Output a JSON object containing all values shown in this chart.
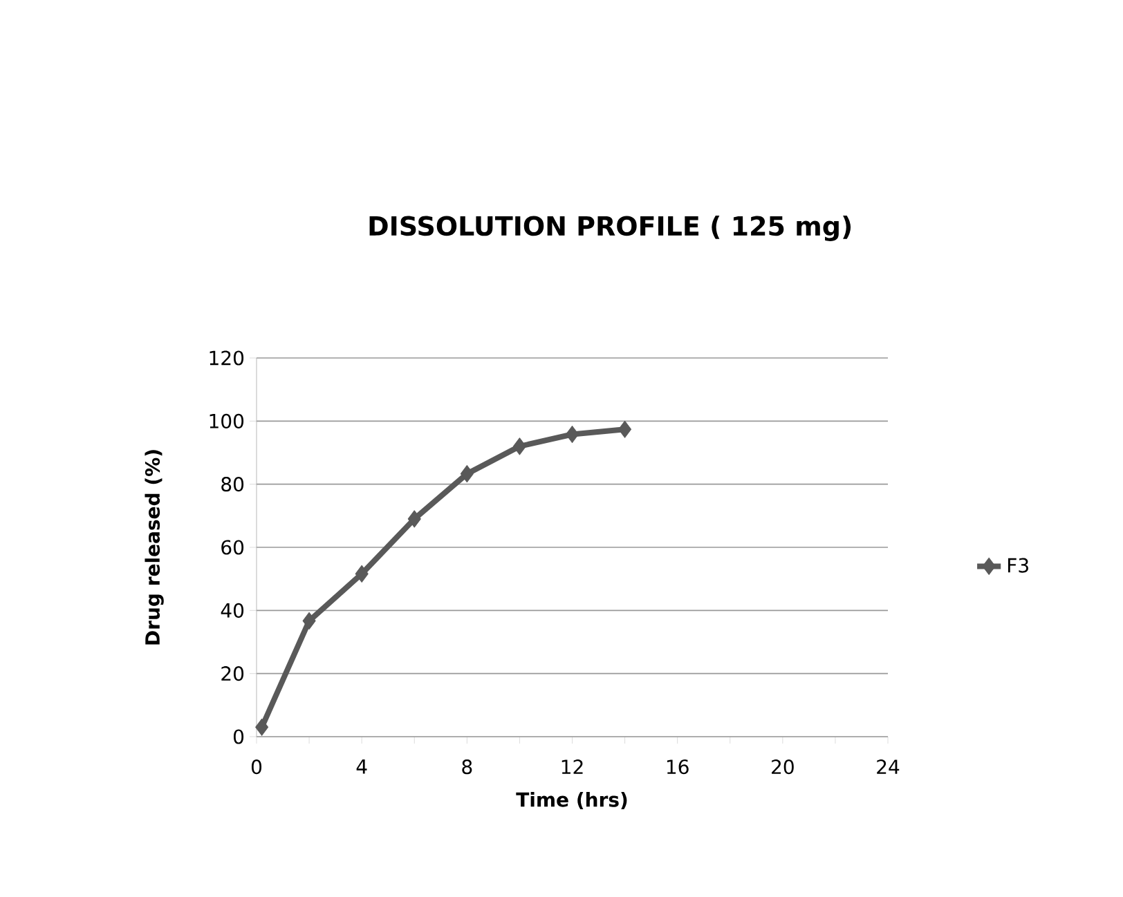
{
  "chart_data": {
    "type": "line",
    "title": "DISSOLUTION PROFILE ( 125 mg)",
    "xlabel": "Time (hrs)",
    "ylabel": "Drug released (%)",
    "x": [
      0.2,
      2,
      4,
      6,
      8,
      10,
      12,
      14
    ],
    "series": [
      {
        "name": "F3",
        "color": "#595959",
        "values": [
          3,
          36.7,
          51.6,
          69,
          83.3,
          92,
          95.8,
          97.4
        ]
      }
    ],
    "xlim": [
      0,
      24
    ],
    "ylim": [
      0,
      120
    ],
    "xticks": [
      0,
      {
        "value": 2,
        "label": null
      },
      4,
      {
        "value": 6,
        "label": null
      },
      8,
      {
        "value": 10,
        "label": null
      },
      12,
      {
        "value": 14,
        "label": null
      },
      16,
      {
        "value": 18,
        "label": null
      },
      20,
      {
        "value": 22,
        "label": null
      },
      24
    ],
    "yticks": [
      0,
      20,
      40,
      60,
      80,
      100,
      120
    ],
    "grid": "y",
    "legend": "right",
    "marker": "diamond",
    "line_style": "solid"
  }
}
